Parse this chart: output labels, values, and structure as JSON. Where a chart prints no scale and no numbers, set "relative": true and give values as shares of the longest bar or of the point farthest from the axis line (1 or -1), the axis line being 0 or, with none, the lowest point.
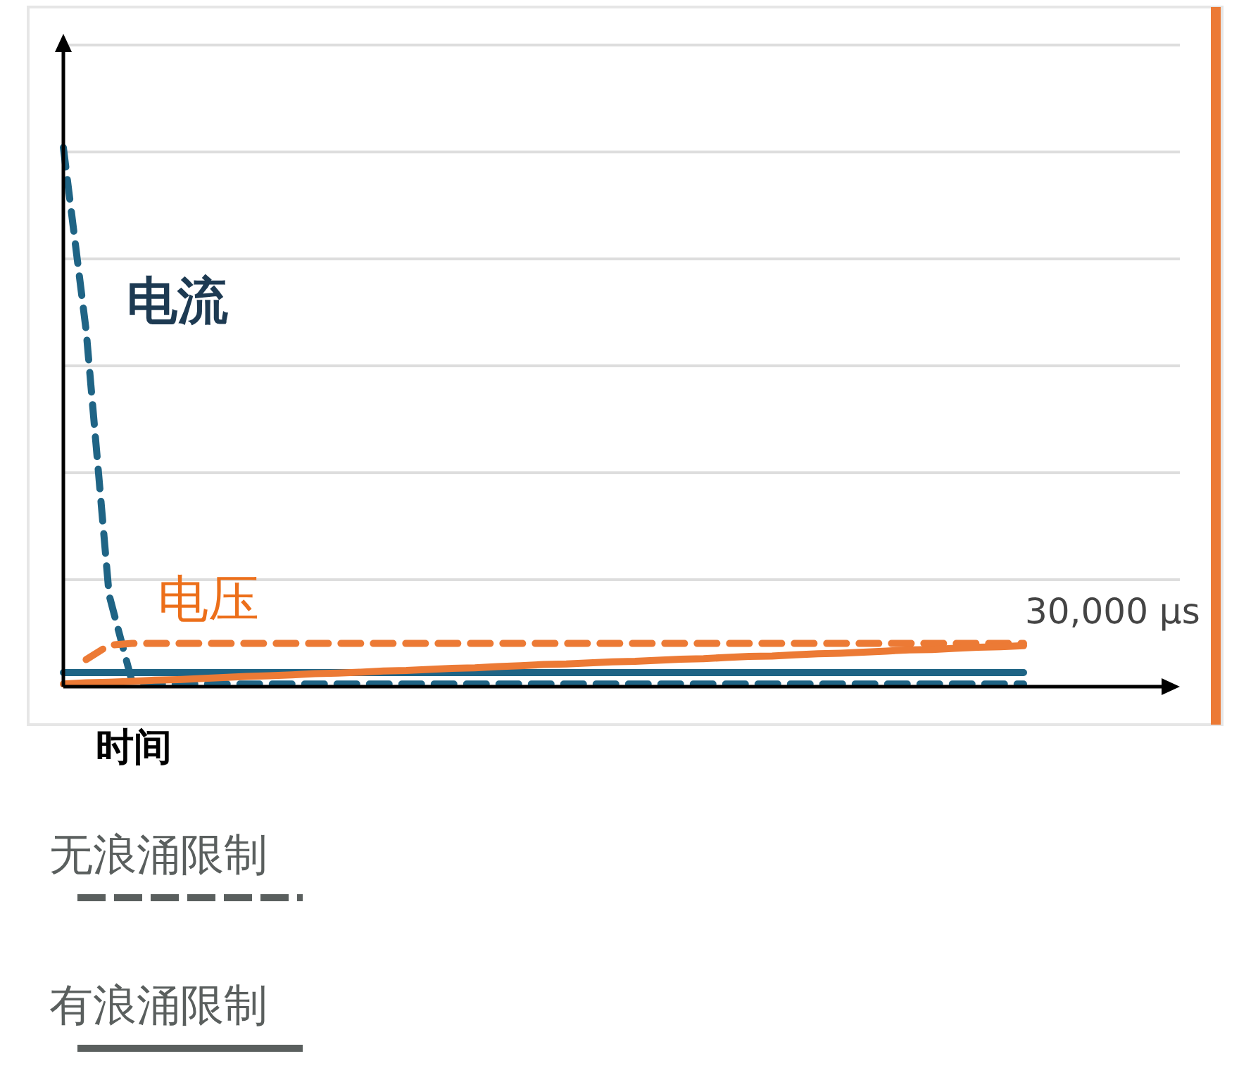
{
  "chart_data": {
    "type": "line",
    "relative": true,
    "xlabel": "时间",
    "grid": true,
    "categories": [
      null,
      null,
      null,
      null,
      null,
      null,
      null,
      null,
      null,
      null,
      null,
      null,
      null,
      null,
      null,
      null,
      null,
      null,
      null,
      null,
      null,
      null,
      null,
      null,
      null,
      null,
      null,
      null,
      null,
      null,
      null,
      null,
      null,
      null,
      null,
      null,
      null,
      null,
      null,
      null,
      null,
      null,
      null
    ],
    "series": [
      {
        "color": "#1f6485",
        "line_style": "dashed",
        "values": [
          1.0,
          0.66,
          0.17,
          0.01,
          0.005,
          0.005,
          0.005,
          0.005,
          0.005,
          0.005,
          0.005,
          0.005,
          0.005,
          0.005,
          0.005,
          0.005,
          0.005,
          0.005,
          0.005,
          0.005,
          0.005,
          0.005,
          0.005,
          0.005,
          0.005,
          0.005,
          0.005,
          0.005,
          0.005,
          0.005,
          0.005,
          0.005,
          0.005,
          0.005,
          0.005,
          0.005,
          0.005,
          0.005,
          0.005,
          0.005,
          0.005,
          0.005,
          0.005
        ]
      },
      {
        "color": "#1f6485",
        "line_style": "solid",
        "values": [
          0.026,
          0.026,
          0.026,
          0.026,
          0.026,
          0.026,
          0.026,
          0.026,
          0.026,
          0.026,
          0.026,
          0.026,
          0.026,
          0.026,
          0.026,
          0.026,
          0.026,
          0.026,
          0.026,
          0.026,
          0.026,
          0.026,
          0.026,
          0.026,
          0.026,
          0.026,
          0.026,
          0.026,
          0.026,
          0.026,
          0.026,
          0.026,
          0.026,
          0.026,
          0.026,
          0.026,
          0.026,
          0.026,
          0.026,
          0.026,
          0.026,
          0.026,
          0.026
        ]
      },
      {
        "color": "#ec7a35",
        "line_style": "dashed",
        "values": [
          null,
          0.05,
          0.077,
          0.08,
          0.08,
          0.08,
          0.08,
          0.08,
          0.08,
          0.08,
          0.08,
          0.08,
          0.08,
          0.08,
          0.08,
          0.08,
          0.08,
          0.08,
          0.08,
          0.08,
          0.08,
          0.08,
          0.08,
          0.08,
          0.08,
          0.08,
          0.08,
          0.08,
          0.08,
          0.08,
          0.08,
          0.08,
          0.08,
          0.08,
          0.08,
          0.08,
          0.08,
          0.08,
          0.08,
          0.08,
          0.08,
          0.08,
          0.08
        ]
      },
      {
        "color": "#ec7a35",
        "line_style": "solid",
        "values": [
          0.005,
          0.007,
          0.008,
          0.01,
          0.012,
          0.013,
          0.015,
          0.017,
          0.019,
          0.02,
          0.022,
          0.024,
          0.025,
          0.027,
          0.029,
          0.03,
          0.032,
          0.034,
          0.035,
          0.037,
          0.039,
          0.041,
          0.042,
          0.044,
          0.046,
          0.047,
          0.049,
          0.051,
          0.052,
          0.054,
          0.056,
          0.057,
          0.059,
          0.061,
          0.062,
          0.064,
          0.066,
          0.068,
          0.069,
          0.071,
          0.073,
          0.074,
          0.076
        ]
      }
    ],
    "annotations": [
      "电流",
      "电压",
      "30,000 µs",
      "无浪涌限制",
      "有浪涌限制"
    ]
  }
}
